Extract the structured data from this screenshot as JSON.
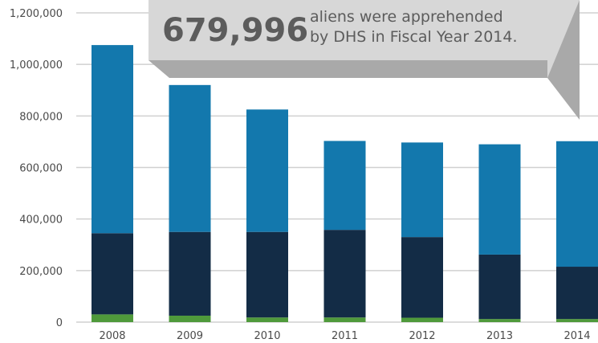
{
  "callout": {
    "number": "679,996",
    "line1": "aliens were apprehended",
    "line2": "by DHS in Fiscal Year 2014."
  },
  "colors": {
    "top": "#1378ad",
    "middle": "#132c46",
    "bottom": "#4f9a3b",
    "grid": "#d0d0d0",
    "callout_face": "#d7d7d7",
    "callout_shadow": "#a9a9a9",
    "text": "#5c5c5c"
  },
  "chart_data": {
    "type": "bar",
    "stacked": true,
    "categories": [
      "2008",
      "2009",
      "2010",
      "2011",
      "2012",
      "2013",
      "2014"
    ],
    "series": [
      {
        "color": "#4f9a3b",
        "values": [
          30000,
          25000,
          18000,
          18000,
          17000,
          12000,
          12000
        ]
      },
      {
        "color": "#132c46",
        "values": [
          315000,
          325000,
          332000,
          340000,
          313000,
          250000,
          203000
        ]
      },
      {
        "color": "#1378ad",
        "values": [
          730000,
          570000,
          475000,
          345000,
          367000,
          428000,
          487000
        ]
      }
    ],
    "yticks": [
      "0",
      "200,000",
      "400,000",
      "600,000",
      "800,000",
      "1,000,000",
      "1,200,000"
    ],
    "ylim": [
      0,
      1200000
    ],
    "grid": true,
    "xlabel": "",
    "ylabel": ""
  }
}
